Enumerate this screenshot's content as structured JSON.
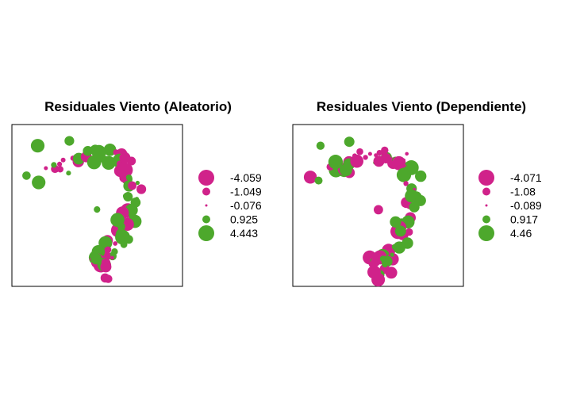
{
  "colors": {
    "negative": "#D0228A",
    "positive": "#4DA82C"
  },
  "chart_data": [
    {
      "type": "scatter",
      "title": "Residuales Viento (Aleatorio)",
      "legend": {
        "position": "right",
        "labels": [
          "-4.059",
          "-1.049",
          "-0.076",
          "0.925",
          "4.443"
        ],
        "values": [
          -4.059,
          -1.049,
          -0.076,
          0.925,
          4.443
        ]
      }
    },
    {
      "type": "scatter",
      "title": "Residuales Viento (Dependiente)",
      "legend": {
        "position": "right",
        "labels": [
          "-4.071",
          "-1.08",
          "-0.089",
          "0.917",
          "4.46"
        ],
        "values": [
          -4.071,
          -1.08,
          -0.089,
          0.917,
          4.46
        ]
      }
    }
  ]
}
